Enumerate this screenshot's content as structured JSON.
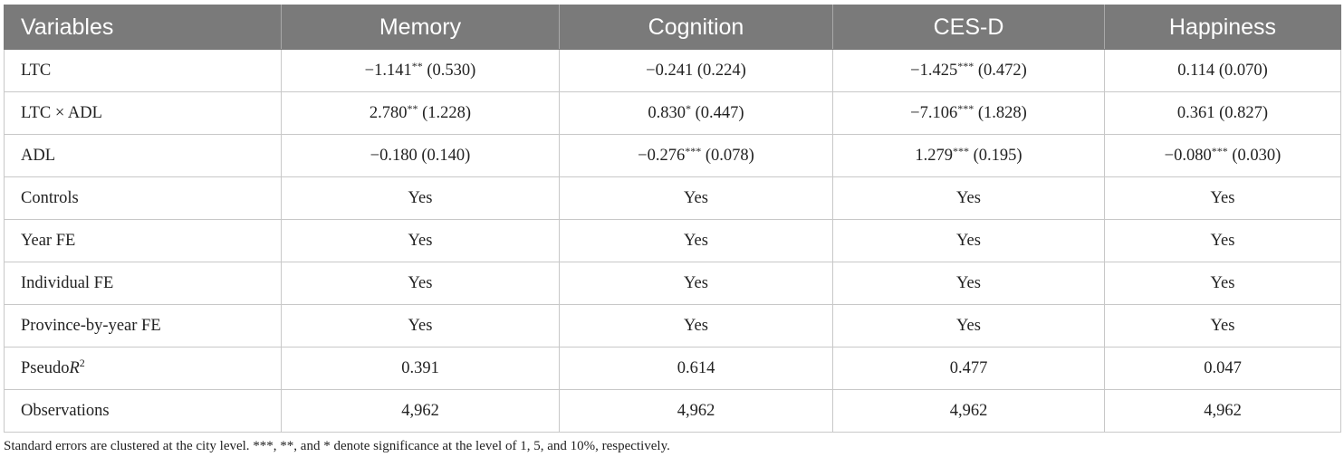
{
  "table": {
    "headers": [
      "Variables",
      "Memory",
      "Cognition",
      "CES-D",
      "Happiness"
    ],
    "rows": [
      {
        "label": "LTC",
        "cells": [
          {
            "coef": "−1.141",
            "stars": "**",
            "se": " (0.530)"
          },
          {
            "coef": "−0.241",
            "stars": "",
            "se": " (0.224)"
          },
          {
            "coef": "−1.425",
            "stars": "***",
            "se": " (0.472)"
          },
          {
            "coef": "0.114",
            "stars": "",
            "se": " (0.070)"
          }
        ]
      },
      {
        "label": "LTC × ADL",
        "cells": [
          {
            "coef": "2.780",
            "stars": "**",
            "se": " (1.228)"
          },
          {
            "coef": "0.830",
            "stars": "*",
            "se": " (0.447)"
          },
          {
            "coef": "−7.106",
            "stars": "***",
            "se": " (1.828)"
          },
          {
            "coef": "0.361",
            "stars": "",
            "se": " (0.827)"
          }
        ]
      },
      {
        "label": "ADL",
        "cells": [
          {
            "coef": "−0.180",
            "stars": "",
            "se": " (0.140)"
          },
          {
            "coef": "−0.276",
            "stars": "***",
            "se": " (0.078)"
          },
          {
            "coef": "1.279",
            "stars": "***",
            "se": " (0.195)"
          },
          {
            "coef": "−0.080",
            "stars": "***",
            "se": " (0.030)"
          }
        ]
      },
      {
        "label": "Controls",
        "cells": [
          {
            "coef": "Yes"
          },
          {
            "coef": "Yes"
          },
          {
            "coef": "Yes"
          },
          {
            "coef": "Yes"
          }
        ]
      },
      {
        "label": "Year FE",
        "cells": [
          {
            "coef": "Yes"
          },
          {
            "coef": "Yes"
          },
          {
            "coef": "Yes"
          },
          {
            "coef": "Yes"
          }
        ]
      },
      {
        "label": "Individual FE",
        "cells": [
          {
            "coef": "Yes"
          },
          {
            "coef": "Yes"
          },
          {
            "coef": "Yes"
          },
          {
            "coef": "Yes"
          }
        ]
      },
      {
        "label": "Province-by-year FE",
        "cells": [
          {
            "coef": "Yes"
          },
          {
            "coef": "Yes"
          },
          {
            "coef": "Yes"
          },
          {
            "coef": "Yes"
          }
        ]
      },
      {
        "label": "Pseudo",
        "label_italic": "R",
        "label_sup": "2",
        "cells": [
          {
            "coef": "0.391"
          },
          {
            "coef": "0.614"
          },
          {
            "coef": "0.477"
          },
          {
            "coef": "0.047"
          }
        ]
      },
      {
        "label": "Observations",
        "cells": [
          {
            "coef": "4,962"
          },
          {
            "coef": "4,962"
          },
          {
            "coef": "4,962"
          },
          {
            "coef": "4,962"
          }
        ]
      }
    ]
  },
  "note": "Standard errors are clustered at the city level. ***, **, and * denote significance at the level of 1, 5, and 10%, respectively."
}
